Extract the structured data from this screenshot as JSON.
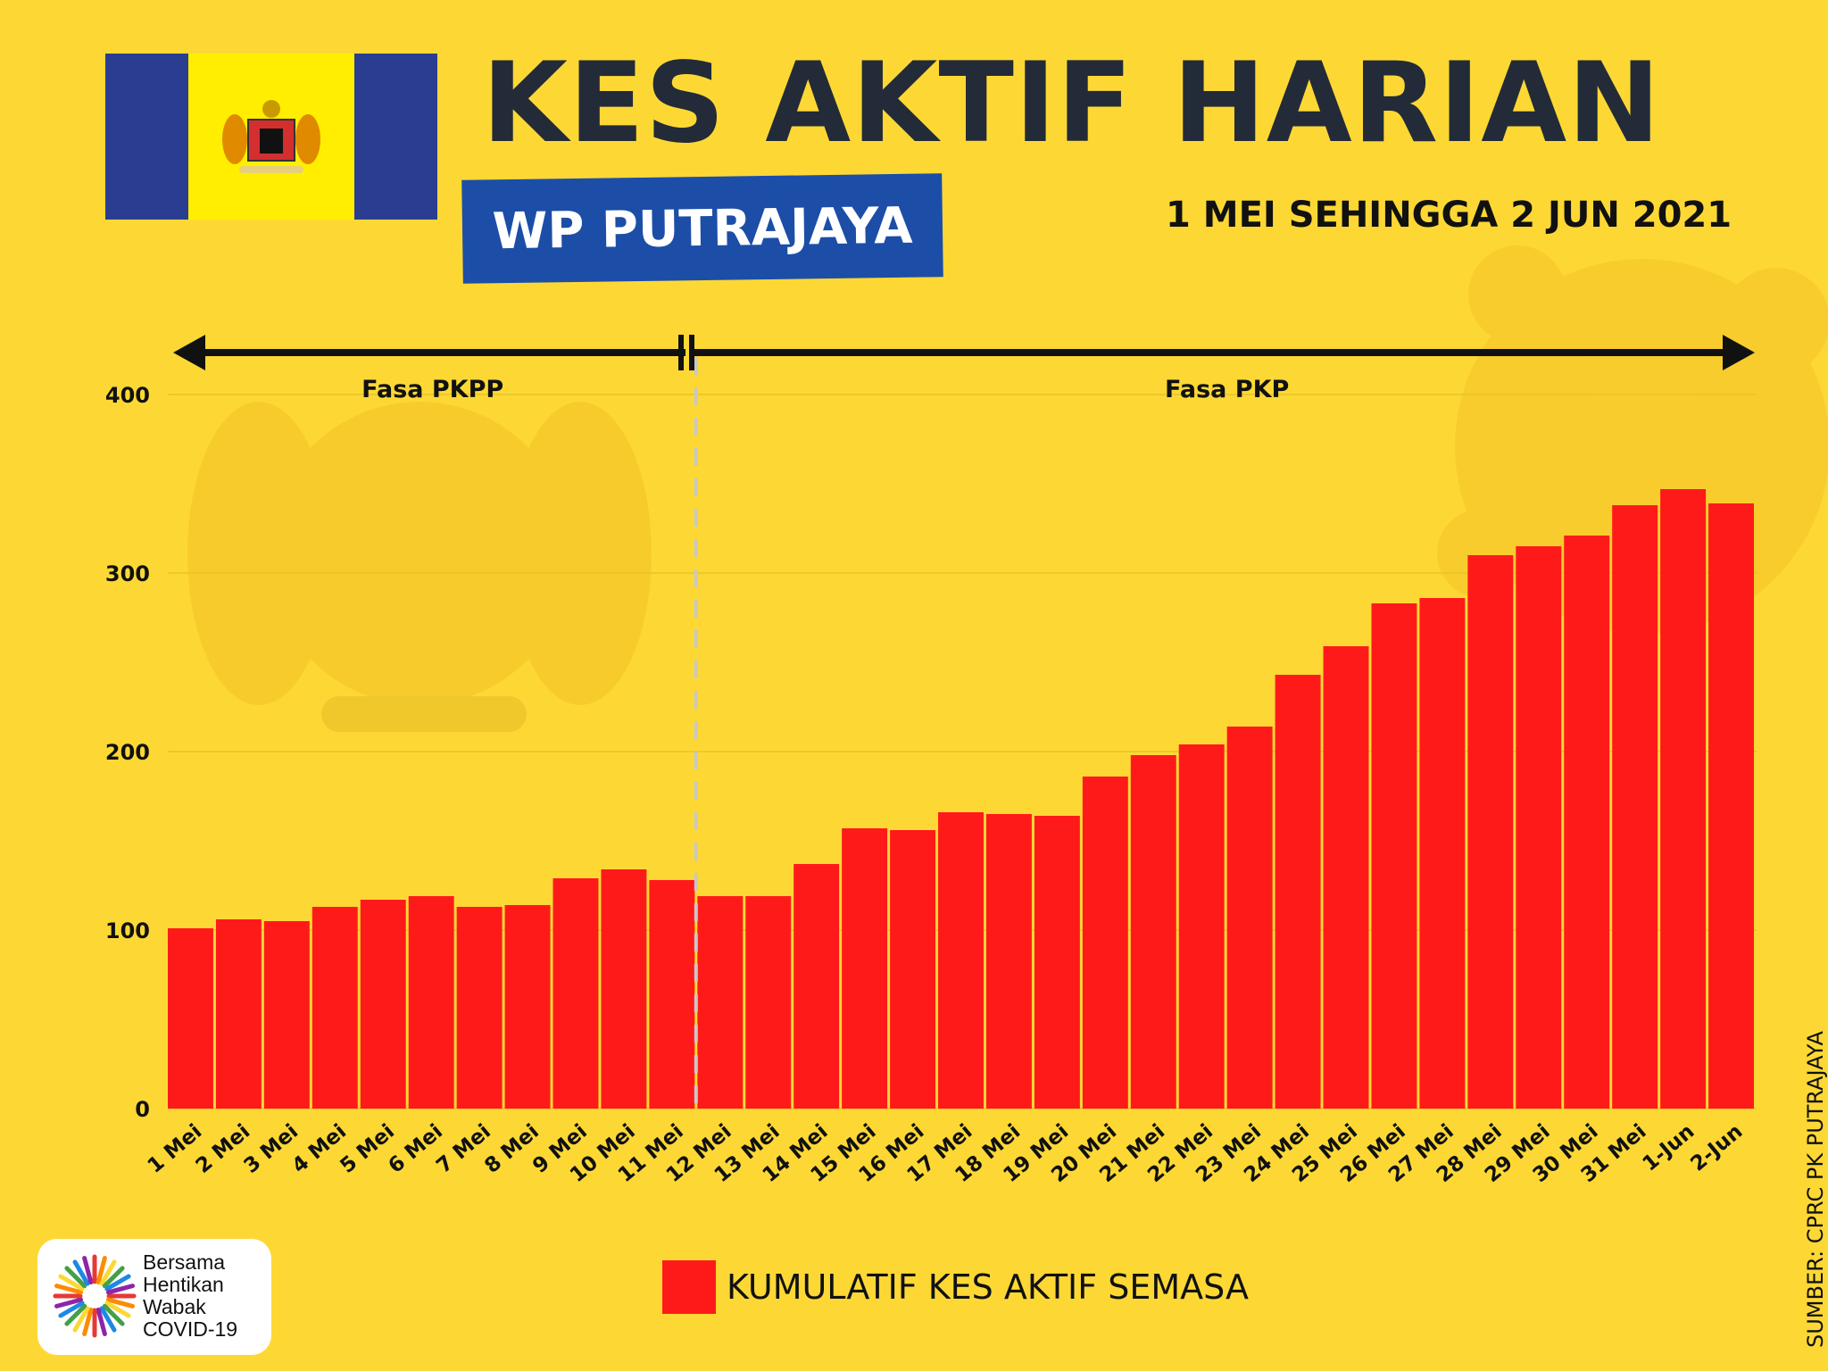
{
  "header": {
    "title": "KES AKTIF HARIAN",
    "subtitle": "WP PUTRAJAYA",
    "date_range": "1 MEI SEHINGGA 2 JUN 2021"
  },
  "colors": {
    "background": "#fdd835",
    "bar": "#ff1a1a",
    "title": "#232b38",
    "subtitle_box": "#1c4ea8"
  },
  "logo": {
    "line1": "Bersama",
    "line2": "Hentikan",
    "line3": "Wabak",
    "line4": "COVID-19"
  },
  "source": "SUMBER: CPRC PK PUTRAJAYA",
  "chart_data": {
    "type": "bar",
    "categories": [
      "1 Mei",
      "2 Mei",
      "3 Mei",
      "4 Mei",
      "5 Mei",
      "6 Mei",
      "7 Mei",
      "8 Mei",
      "9 Mei",
      "10 Mei",
      "11 Mei",
      "12 Mei",
      "13 Mei",
      "14 Mei",
      "15 Mei",
      "16 Mei",
      "17 Mei",
      "18 Mei",
      "19 Mei",
      "20 Mei",
      "21 Mei",
      "22 Mei",
      "23 Mei",
      "24 Mei",
      "25 Mei",
      "26 Mei",
      "27 Mei",
      "28 Mei",
      "29 Mei",
      "30 Mei",
      "31 Mei",
      "1-Jun",
      "2-Jun"
    ],
    "series": [
      {
        "name": "KUMULATIF KES AKTIF SEMASA",
        "values": [
          101,
          106,
          105,
          113,
          117,
          119,
          113,
          114,
          129,
          134,
          128,
          119,
          119,
          137,
          157,
          156,
          166,
          165,
          164,
          186,
          198,
          204,
          214,
          243,
          259,
          283,
          286,
          310,
          315,
          321,
          338,
          347,
          339
        ]
      }
    ],
    "ylim": [
      0,
      400
    ],
    "yticks": [
      0,
      100,
      200,
      300,
      400
    ],
    "grid": true,
    "legend": "bottom",
    "phases": [
      {
        "label": "Fasa PKPP",
        "from": "1 Mei",
        "to": "11 Mei"
      },
      {
        "label": "Fasa PKP",
        "from": "12 Mei",
        "to": "2-Jun"
      }
    ]
  }
}
